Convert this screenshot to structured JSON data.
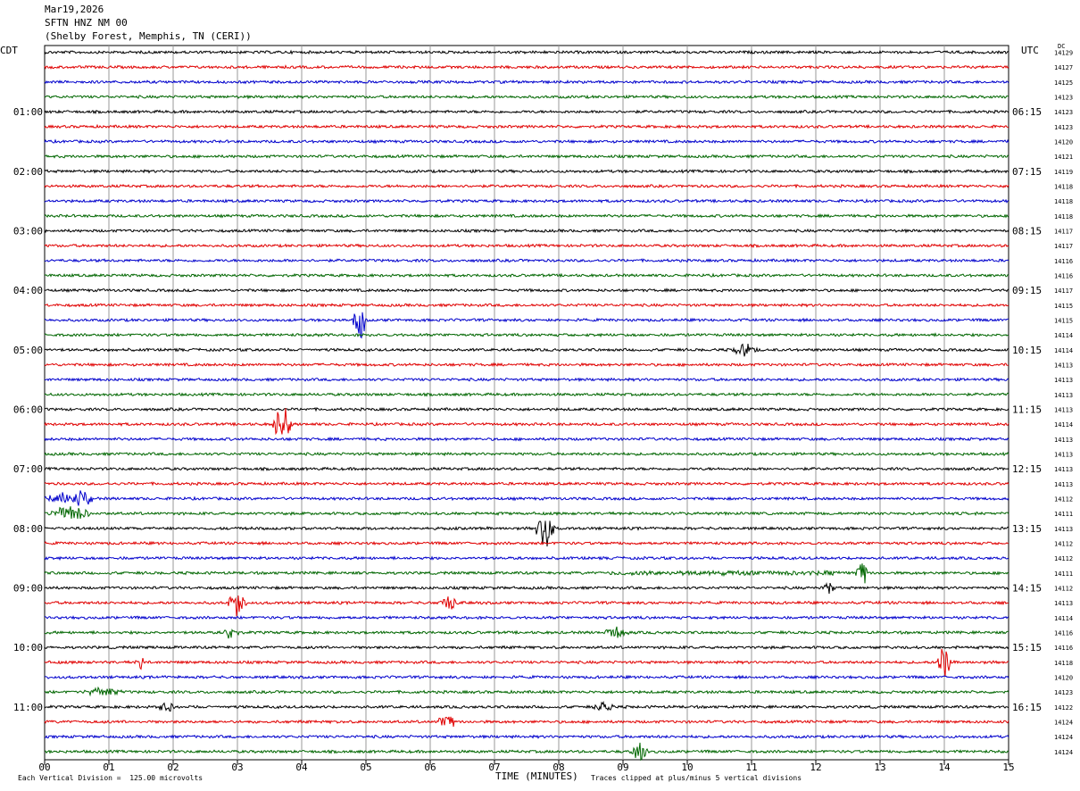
{
  "header": {
    "date": "Mar19,2026",
    "station": "SFTN HNZ NM 00",
    "location": "(Shelby Forest, Memphis, TN (CERI))"
  },
  "corners": {
    "left_tz": "CDT",
    "right_tz": "UTC",
    "dc_label": "DC"
  },
  "footer": {
    "scale_note": "Each Vertical Division =  125.00 microvolts",
    "clip_note": "Traces clipped at plus/minus 5 vertical divisions"
  },
  "chart_data": {
    "type": "line",
    "title": "",
    "xlabel": "TIME (MINUTES)",
    "ylabel": "",
    "xlim": [
      0,
      15
    ],
    "x_ticks": [
      "00",
      "01",
      "02",
      "03",
      "04",
      "05",
      "06",
      "07",
      "08",
      "09",
      "10",
      "11",
      "12",
      "13",
      "14",
      "15"
    ],
    "grid": true,
    "trace_colors": [
      "#000000",
      "#e00000",
      "#0000cc",
      "#006600"
    ],
    "trace_count": 48,
    "trace_interval_minutes": 15,
    "left_time_labels": [
      {
        "trace": 4,
        "label": "01:00"
      },
      {
        "trace": 8,
        "label": "02:00"
      },
      {
        "trace": 12,
        "label": "03:00"
      },
      {
        "trace": 16,
        "label": "04:00"
      },
      {
        "trace": 20,
        "label": "05:00"
      },
      {
        "trace": 24,
        "label": "06:00"
      },
      {
        "trace": 28,
        "label": "07:00"
      },
      {
        "trace": 32,
        "label": "08:00"
      },
      {
        "trace": 36,
        "label": "09:00"
      },
      {
        "trace": 40,
        "label": "10:00"
      },
      {
        "trace": 44,
        "label": "11:00"
      }
    ],
    "right_time_labels": [
      {
        "trace": 4,
        "label": "06:15"
      },
      {
        "trace": 8,
        "label": "07:15"
      },
      {
        "trace": 12,
        "label": "08:15"
      },
      {
        "trace": 16,
        "label": "09:15"
      },
      {
        "trace": 20,
        "label": "10:15"
      },
      {
        "trace": 24,
        "label": "11:15"
      },
      {
        "trace": 28,
        "label": "12:15"
      },
      {
        "trace": 32,
        "label": "13:15"
      },
      {
        "trace": 36,
        "label": "14:15"
      },
      {
        "trace": 40,
        "label": "15:15"
      },
      {
        "trace": 44,
        "label": "16:15"
      }
    ],
    "dc_values": [
      "14129",
      "14127",
      "14125",
      "14123",
      "14123",
      "14123",
      "14120",
      "14121",
      "14119",
      "14118",
      "14118",
      "14118",
      "14117",
      "14117",
      "14116",
      "14116",
      "14117",
      "14115",
      "14115",
      "14114",
      "14114",
      "14113",
      "14113",
      "14113",
      "14113",
      "14114",
      "14113",
      "14113",
      "14113",
      "14113",
      "14112",
      "14111",
      "14113",
      "14112",
      "14112",
      "14111",
      "14112",
      "14113",
      "14114",
      "14116",
      "14116",
      "14118",
      "14120",
      "14123",
      "14122",
      "14124",
      "14124",
      "14124"
    ],
    "events": [
      {
        "trace": 18,
        "minute": 4.9,
        "amplitude": 5,
        "width": 0.1
      },
      {
        "trace": 20,
        "minute": 10.9,
        "amplitude": 1.8,
        "width": 0.2
      },
      {
        "trace": 25,
        "minute": 3.7,
        "amplitude": 5,
        "width": 0.15
      },
      {
        "trace": 30,
        "minute": 0.3,
        "amplitude": 1.6,
        "width": 0.3
      },
      {
        "trace": 30,
        "minute": 0.6,
        "amplitude": 2.8,
        "width": 0.15
      },
      {
        "trace": 31,
        "minute": 0.4,
        "amplitude": 2.2,
        "width": 0.3
      },
      {
        "trace": 32,
        "minute": 7.8,
        "amplitude": 5,
        "width": 0.15
      },
      {
        "trace": 35,
        "minute": 12.7,
        "amplitude": 4,
        "width": 0.1
      },
      {
        "trace": 35,
        "minute": 10.6,
        "amplitude": 0.6,
        "width": 1.8
      },
      {
        "trace": 36,
        "minute": 12.2,
        "amplitude": 1.8,
        "width": 0.1
      },
      {
        "trace": 37,
        "minute": 3.0,
        "amplitude": 3.5,
        "width": 0.15
      },
      {
        "trace": 37,
        "minute": 6.3,
        "amplitude": 2.2,
        "width": 0.15
      },
      {
        "trace": 39,
        "minute": 2.9,
        "amplitude": 2.0,
        "width": 0.12
      },
      {
        "trace": 39,
        "minute": 8.9,
        "amplitude": 1.6,
        "width": 0.2
      },
      {
        "trace": 41,
        "minute": 1.5,
        "amplitude": 2.0,
        "width": 0.1
      },
      {
        "trace": 41,
        "minute": 14.0,
        "amplitude": 5,
        "width": 0.1
      },
      {
        "trace": 43,
        "minute": 0.9,
        "amplitude": 1.4,
        "width": 0.3
      },
      {
        "trace": 44,
        "minute": 1.9,
        "amplitude": 1.8,
        "width": 0.12
      },
      {
        "trace": 44,
        "minute": 8.7,
        "amplitude": 1.8,
        "width": 0.15
      },
      {
        "trace": 45,
        "minute": 6.25,
        "amplitude": 3.0,
        "width": 0.12
      },
      {
        "trace": 47,
        "minute": 9.25,
        "amplitude": 3.0,
        "width": 0.15
      }
    ]
  }
}
